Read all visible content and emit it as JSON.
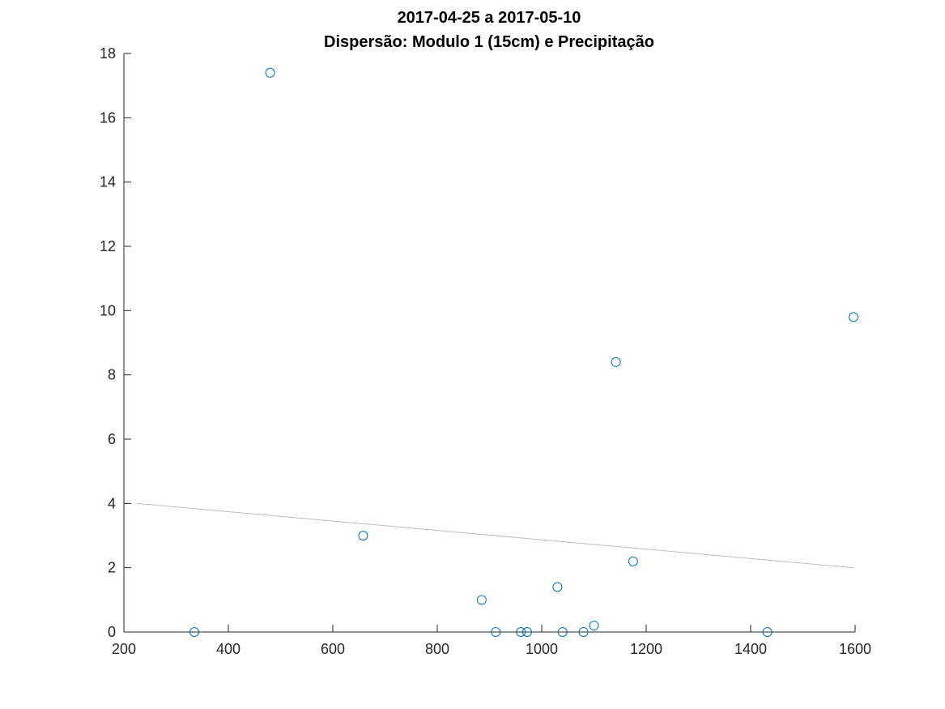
{
  "chart_data": {
    "type": "scatter",
    "title": "2017-04-25 a 2017-05-10",
    "subtitle": "Dispersão: Modulo 1 (15cm) e Precipitação",
    "xlabel": "",
    "ylabel": "",
    "xlim": [
      200,
      1600
    ],
    "ylim": [
      0,
      18
    ],
    "xticks": [
      200,
      400,
      600,
      800,
      1000,
      1200,
      1400,
      1600
    ],
    "yticks": [
      0,
      2,
      4,
      6,
      8,
      10,
      12,
      14,
      16,
      18
    ],
    "grid": false,
    "marker_color": "#0072BD",
    "trend_color": "#bdbdbd",
    "points": [
      {
        "x": 335,
        "y": 0
      },
      {
        "x": 480,
        "y": 17.4
      },
      {
        "x": 658,
        "y": 3.0
      },
      {
        "x": 885,
        "y": 1.0
      },
      {
        "x": 912,
        "y": 0
      },
      {
        "x": 960,
        "y": 0
      },
      {
        "x": 972,
        "y": 0
      },
      {
        "x": 1030,
        "y": 1.4
      },
      {
        "x": 1040,
        "y": 0
      },
      {
        "x": 1080,
        "y": 0
      },
      {
        "x": 1100,
        "y": 0.2
      },
      {
        "x": 1142,
        "y": 8.4
      },
      {
        "x": 1175,
        "y": 2.2
      },
      {
        "x": 1432,
        "y": 0
      },
      {
        "x": 1597,
        "y": 9.8
      }
    ],
    "trendline": {
      "x": [
        225,
        1597
      ],
      "y": [
        4.0,
        2.0
      ]
    }
  }
}
